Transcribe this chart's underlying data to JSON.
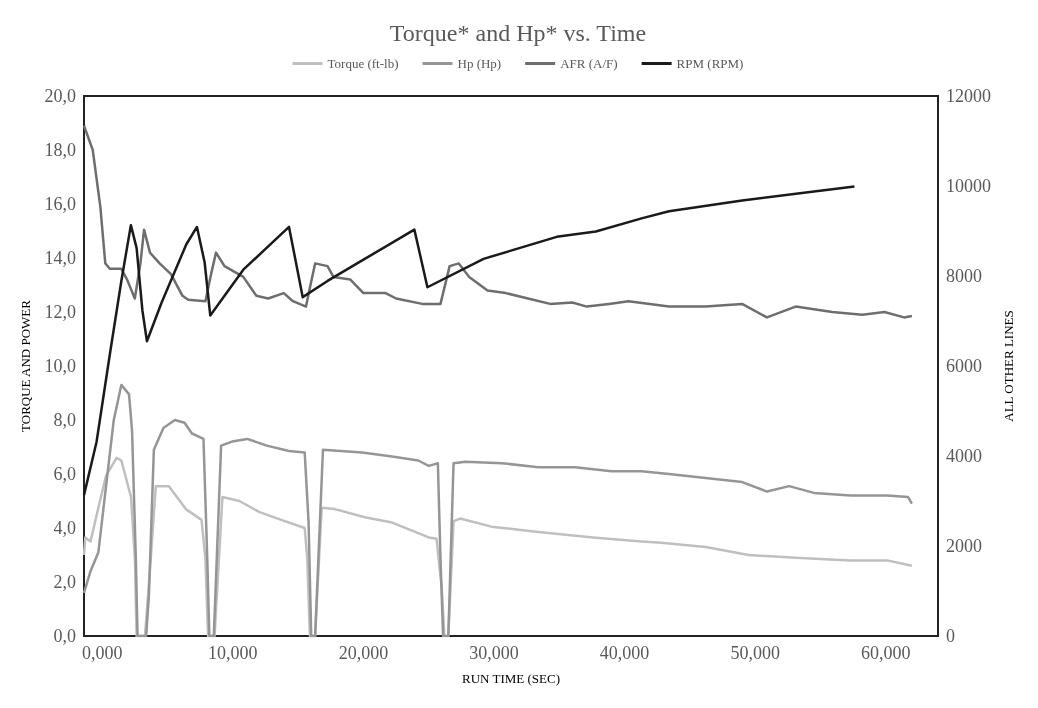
{
  "chart_data": {
    "type": "line",
    "title": "Torque* and Hp* vs. Time",
    "xlabel": "RUN TIME (SEC)",
    "ylabel": "TORQUE AND POWER",
    "y2label": "ALL OTHER LINES",
    "legend": "top",
    "xlim": [
      -1.4,
      64
    ],
    "xticks": [
      {
        "value": 0,
        "label": "0,000"
      },
      {
        "value": 10,
        "label": "10,000"
      },
      {
        "value": 20,
        "label": "20,000"
      },
      {
        "value": 30,
        "label": "30,000"
      },
      {
        "value": 40,
        "label": "40,000"
      },
      {
        "value": 50,
        "label": "50,000"
      },
      {
        "value": 60,
        "label": "60,000"
      }
    ],
    "ylim": [
      0,
      20
    ],
    "yticks": [
      {
        "value": 0,
        "label": "0,0"
      },
      {
        "value": 2,
        "label": "2,0"
      },
      {
        "value": 4,
        "label": "4,0"
      },
      {
        "value": 6,
        "label": "6,0"
      },
      {
        "value": 8,
        "label": "8,0"
      },
      {
        "value": 10,
        "label": "10,0"
      },
      {
        "value": 12,
        "label": "12,0"
      },
      {
        "value": 14,
        "label": "14,0"
      },
      {
        "value": 16,
        "label": "16,0"
      },
      {
        "value": 18,
        "label": "18,0"
      },
      {
        "value": 20,
        "label": "20,0"
      }
    ],
    "y2lim": [
      0,
      12000
    ],
    "y2ticks": [
      0,
      2000,
      4000,
      6000,
      8000,
      10000,
      12000
    ],
    "series": [
      {
        "name": "Torque (ft-lb)",
        "color": "#bfbfbf",
        "x": [
          -1.4,
          -1.3,
          -0.9,
          -0.3,
          0.3,
          1.1,
          1.46,
          2.2,
          2.5,
          2.63,
          3.27,
          3.65,
          4.1,
          5.1,
          6.4,
          7.6,
          7.9,
          8.1,
          8.6,
          9.2,
          10.5,
          12,
          13.7,
          15.5,
          15.7,
          15.9,
          16.3,
          16.8,
          17.8,
          20.1,
          22.2,
          25,
          25.6,
          26,
          26.2,
          26.5,
          26.9,
          27.4,
          29.8,
          33.4,
          37.6,
          41.3,
          42.8,
          46.2,
          49.5,
          53.1,
          57.3,
          60.1,
          62
        ],
        "values": [
          3.0,
          3.65,
          3.5,
          4.75,
          5.95,
          6.6,
          6.5,
          5.15,
          2.85,
          0,
          0,
          2.45,
          5.55,
          5.55,
          4.7,
          4.3,
          2.85,
          0,
          0,
          5.15,
          5.0,
          4.6,
          4.3,
          4.0,
          2.85,
          0,
          0,
          4.75,
          4.7,
          4.4,
          4.2,
          3.65,
          3.6,
          1.75,
          0,
          0,
          4.25,
          4.35,
          4.05,
          3.85,
          3.65,
          3.5,
          3.45,
          3.3,
          3.0,
          2.9,
          2.8,
          2.8,
          2.6
        ]
      },
      {
        "name": "Hp (Hp)",
        "color": "#959595",
        "x": [
          -1.4,
          -0.9,
          -0.3,
          0.3,
          0.88,
          1.46,
          2.05,
          2.28,
          2.57,
          2.7,
          3.36,
          3.57,
          3.95,
          4.68,
          5.56,
          6.3,
          6.87,
          7.75,
          8.04,
          8.2,
          8.54,
          9.1,
          9.94,
          11.1,
          12.6,
          14.3,
          15.5,
          15.8,
          16,
          16.3,
          16.9,
          19.9,
          22.2,
          24.2,
          25,
          25.7,
          25.9,
          26.1,
          26.5,
          26.9,
          27.8,
          30.6,
          33.4,
          36.2,
          39,
          41.3,
          43.4,
          46.2,
          49,
          50.9,
          52.6,
          54.5,
          57.3,
          60.1,
          61.7,
          62
        ],
        "values": [
          1.6,
          2.4,
          3.1,
          5.6,
          8.0,
          9.3,
          8.95,
          7.6,
          2.85,
          0,
          0,
          1.5,
          6.9,
          7.7,
          8.0,
          7.9,
          7.5,
          7.3,
          2.85,
          0,
          0,
          7.05,
          7.2,
          7.3,
          7.05,
          6.85,
          6.8,
          4.2,
          0,
          0,
          6.9,
          6.8,
          6.65,
          6.5,
          6.3,
          6.4,
          2.85,
          0,
          0,
          6.4,
          6.45,
          6.4,
          6.25,
          6.25,
          6.1,
          6.1,
          6.0,
          5.85,
          5.7,
          5.35,
          5.55,
          5.3,
          5.2,
          5.2,
          5.15,
          4.9
        ]
      },
      {
        "name": "AFR (A/F)",
        "color": "#6e6e6e",
        "x": [
          -1.4,
          -0.73,
          -0.15,
          0.23,
          0.58,
          1.46,
          1.9,
          2.49,
          2.92,
          3.2,
          3.65,
          4.39,
          5.26,
          6.14,
          6.58,
          7.9,
          8.33,
          8.71,
          9.36,
          10.8,
          11.8,
          12.7,
          13.9,
          14.6,
          15.6,
          15.9,
          16.3,
          17.25,
          17.7,
          19,
          20,
          21.7,
          22.5,
          24.5,
          25.9,
          26.6,
          27.3,
          28.1,
          29.5,
          30.9,
          32.6,
          34.3,
          36,
          37.1,
          38.8,
          40.3,
          43.4,
          46.2,
          49,
          50.9,
          53.1,
          55.9,
          58.2,
          59.9,
          61.4,
          62
        ],
        "values": [
          18.9,
          18.0,
          15.9,
          13.8,
          13.6,
          13.6,
          13.2,
          12.5,
          13.8,
          15.05,
          14.2,
          13.8,
          13.4,
          12.6,
          12.45,
          12.4,
          13.4,
          14.2,
          13.7,
          13.3,
          12.6,
          12.5,
          12.7,
          12.4,
          12.2,
          12.9,
          13.8,
          13.7,
          13.3,
          13.2,
          12.7,
          12.7,
          12.5,
          12.3,
          12.3,
          13.7,
          13.8,
          13.3,
          12.8,
          12.7,
          12.5,
          12.3,
          12.35,
          12.2,
          12.3,
          12.4,
          12.2,
          12.2,
          12.3,
          11.8,
          12.2,
          12.0,
          11.9,
          12.0,
          11.8,
          11.85
        ]
      },
      {
        "name": "RPM (RPM)",
        "color": "#1a1a1a",
        "axis": "y2",
        "x": [
          -1.4,
          -0.44,
          0.58,
          1.46,
          2.19,
          2.63,
          3.07,
          3.42,
          4.53,
          6.43,
          7.25,
          7.84,
          8.27,
          10.8,
          14.3,
          15.35,
          17.25,
          20.1,
          23.9,
          24.9,
          29.2,
          34.8,
          37.8,
          41.3,
          43.4,
          49,
          54.5,
          57.6
        ],
        "values": [
          3130,
          4310,
          6260,
          7890,
          9130,
          8620,
          7240,
          6550,
          7400,
          8700,
          9090,
          8300,
          7120,
          8140,
          9090,
          7530,
          7890,
          8380,
          9030,
          7750,
          8380,
          8870,
          8990,
          9280,
          9440,
          9680,
          9880,
          9990
        ]
      }
    ]
  }
}
